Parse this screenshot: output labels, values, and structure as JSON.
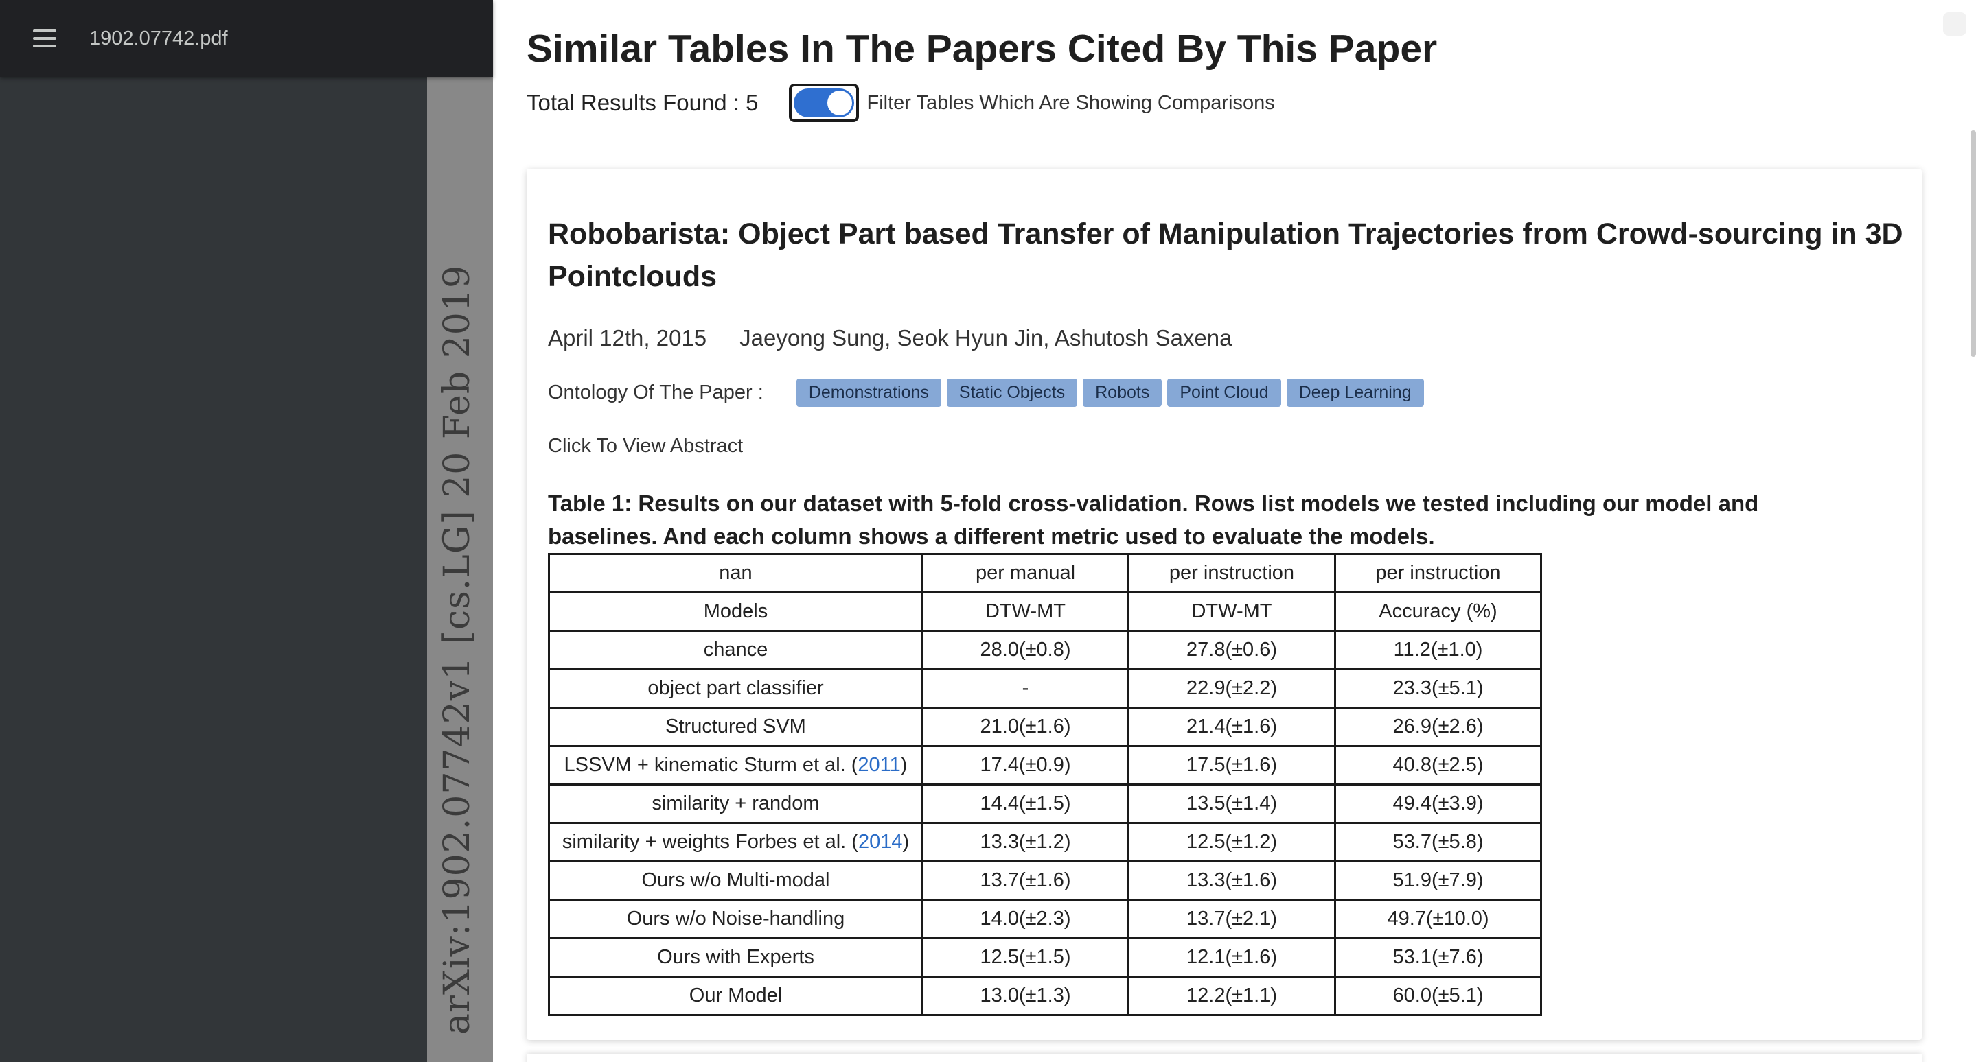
{
  "pdf_viewer": {
    "filename": "1902.07742.pdf",
    "arxiv_stamp": "arXiv:1902.07742v1  [cs.LG]  20 Feb 2019"
  },
  "header": {
    "title": "Similar Tables In The Papers Cited By This Paper",
    "results_label": "Total Results Found : 5",
    "filter_label": "Filter Tables Which Are Showing Comparisons",
    "filter_enabled": true
  },
  "paper": {
    "title": "Robobarista: Object Part based Transfer of Manipulation Trajectories from Crowd-sourcing in 3D Pointclouds",
    "date": "April 12th, 2015",
    "authors": "Jaeyong Sung, Seok Hyun Jin, Ashutosh Saxena",
    "ontology_label": "Ontology Of The Paper :",
    "tags": [
      "Demonstrations",
      "Static Objects",
      "Robots",
      "Point Cloud",
      "Deep Learning"
    ],
    "abstract_link": "Click To View Abstract",
    "table_caption": "Table 1: Results on our dataset with 5-fold cross-validation. Rows list models we tested including our model and baselines. And each column shows a different metric used to evaluate the models."
  },
  "table": {
    "rows": [
      [
        "nan",
        "per manual",
        "per instruction",
        "per instruction"
      ],
      [
        "Models",
        "DTW-MT",
        "DTW-MT",
        "Accuracy (%)"
      ],
      [
        "chance",
        "28.0(±0.8)",
        "27.8(±0.6)",
        "11.2(±1.0)"
      ],
      [
        "object part classifier",
        "-",
        "22.9(±2.2)",
        "23.3(±5.1)"
      ],
      [
        "Structured SVM",
        "21.0(±1.6)",
        "21.4(±1.6)",
        "26.9(±2.6)"
      ],
      [
        "LSSVM + kinematic Sturm et al. (",
        "17.4(±0.9)",
        "17.5(±1.6)",
        "40.8(±2.5)"
      ],
      [
        "similarity + random",
        "14.4(±1.5)",
        "13.5(±1.4)",
        "49.4(±3.9)"
      ],
      [
        "similarity + weights Forbes et al. (",
        "13.3(±1.2)",
        "12.5(±1.2)",
        "53.7(±5.8)"
      ],
      [
        "Ours w/o Multi-modal",
        "13.7(±1.6)",
        "13.3(±1.6)",
        "51.9(±7.9)"
      ],
      [
        "Ours w/o Noise-handling",
        "14.0(±2.3)",
        "13.7(±2.1)",
        "49.7(±10.0)"
      ],
      [
        "Ours with Experts",
        "12.5(±1.5)",
        "12.1(±1.6)",
        "53.1(±7.6)"
      ],
      [
        "Our Model",
        "13.0(±1.3)",
        "12.2(±1.1)",
        "60.0(±5.1)"
      ]
    ],
    "citations": {
      "5": "2011",
      "7": "2014"
    }
  }
}
